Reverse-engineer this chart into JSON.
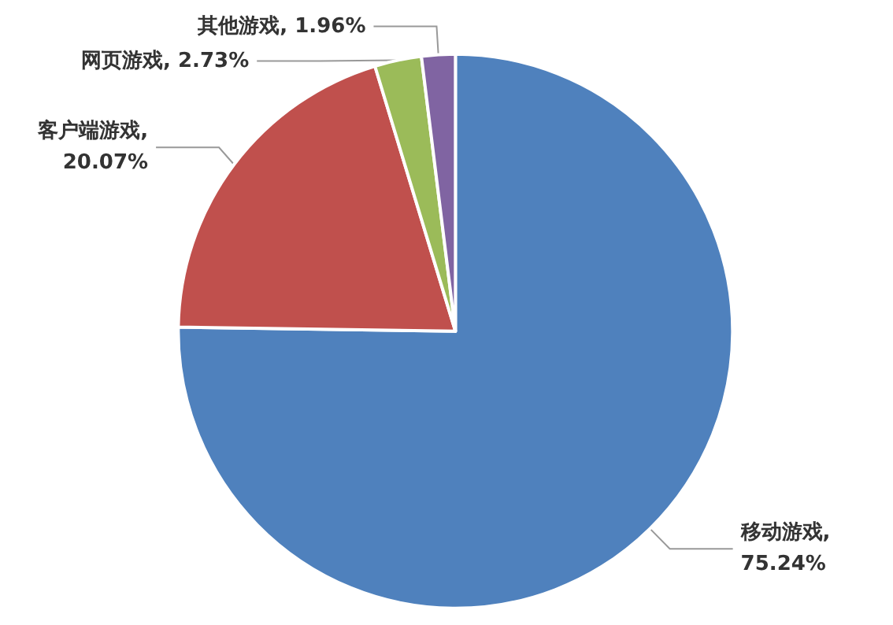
{
  "chart_data": {
    "type": "pie",
    "categories": [
      "移动游戏",
      "客户端游戏",
      "网页游戏",
      "其他游戏"
    ],
    "values": [
      75.24,
      20.07,
      2.73,
      1.96
    ],
    "colors": [
      "#4f81bd",
      "#c0504d",
      "#9bbb59",
      "#8064a2"
    ],
    "value_labels": [
      ", 75.24%",
      ", 20.07%",
      ", 2.73%",
      ", 1.96%"
    ],
    "legend": false
  }
}
